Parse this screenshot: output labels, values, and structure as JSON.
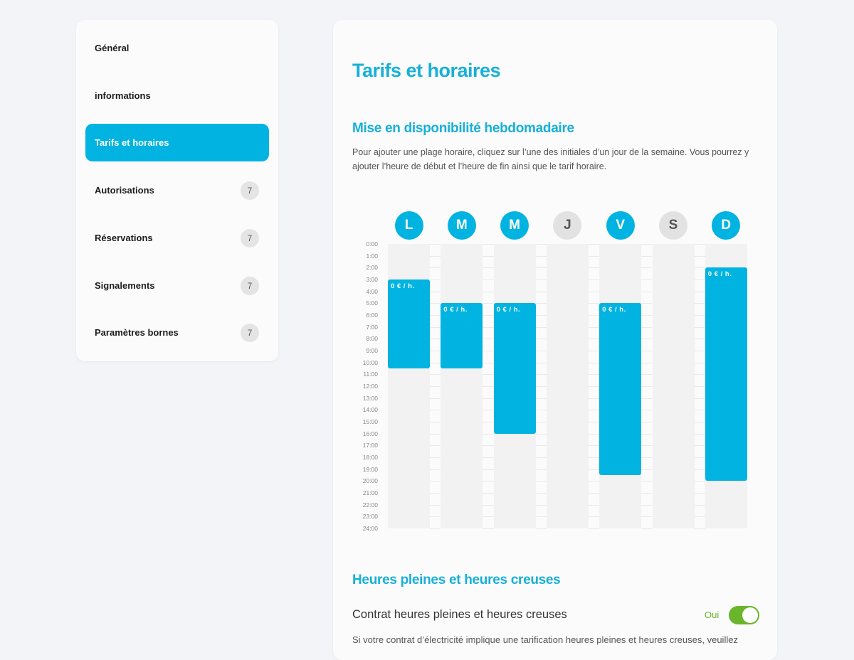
{
  "sidebar": {
    "items": [
      {
        "label": "Général"
      },
      {
        "label": "informations"
      },
      {
        "label": "Tarifs et horaires",
        "active": true
      },
      {
        "label": "Autorisations",
        "badge": 7
      },
      {
        "label": "Réservations",
        "badge": 7
      },
      {
        "label": "Signalements",
        "badge": 7
      },
      {
        "label": "Paramètres bornes",
        "badge": 7
      }
    ]
  },
  "main": {
    "title": "Tarifs et horaires",
    "weekly": {
      "heading": "Mise en disponibilité hebdomadaire",
      "description": "Pour ajouter une plage horaire, cliquez sur l’une des initiales d’un jour de la semaine. Vous pourrez y ajouter l’heure de début et l’heure de fin ainsi que le tarif horaire.",
      "hours": [
        "0:00",
        "1:00",
        "2:00",
        "3:00",
        "4:00",
        "5:00",
        "6:00",
        "7:00",
        "8:00",
        "9:00",
        "10:00",
        "11:00",
        "12:00",
        "13:00",
        "14:00",
        "15:00",
        "16:00",
        "17:00",
        "18:00",
        "19:00",
        "20:00",
        "21:00",
        "22:00",
        "23:00",
        "24:00"
      ],
      "days": [
        {
          "initial": "L",
          "active": true,
          "slots": [
            {
              "start": 3,
              "end": 10.5,
              "label": "0 € / h."
            }
          ]
        },
        {
          "initial": "M",
          "active": true,
          "slots": [
            {
              "start": 5,
              "end": 10.5,
              "label": "0 € / h."
            }
          ]
        },
        {
          "initial": "M",
          "active": true,
          "slots": [
            {
              "start": 5,
              "end": 16,
              "label": "0 € / h."
            }
          ]
        },
        {
          "initial": "J",
          "active": false,
          "slots": []
        },
        {
          "initial": "V",
          "active": true,
          "slots": [
            {
              "start": 5,
              "end": 19.5,
              "label": "0 € / h."
            }
          ]
        },
        {
          "initial": "S",
          "active": false,
          "slots": []
        },
        {
          "initial": "D",
          "active": true,
          "slots": [
            {
              "start": 2,
              "end": 20,
              "label": "0 € / h."
            }
          ]
        }
      ]
    },
    "peak": {
      "heading": "Heures pleines et heures creuses",
      "contract": {
        "label": "Contrat heures pleines et heures creuses",
        "state": "Oui",
        "on": true
      },
      "description": "Si votre contrat d’électricité implique une tarification heures pleines et heures creuses, veuillez"
    }
  }
}
